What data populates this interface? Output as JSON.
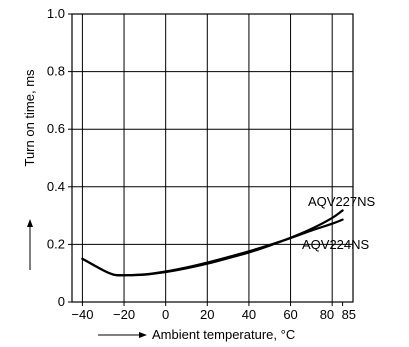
{
  "chart_data": {
    "type": "line",
    "title": "",
    "xlabel": "Ambient temperature, °C",
    "ylabel": "Turn on time, ms",
    "xlim": [
      -45,
      90
    ],
    "ylim": [
      0,
      1.0
    ],
    "x_ticks": [
      -40,
      -20,
      0,
      20,
      40,
      60,
      80,
      85
    ],
    "x_tick_labels": [
      "−40",
      "−20",
      "0",
      "20",
      "40",
      "60",
      "80",
      "85"
    ],
    "y_ticks": [
      0,
      0.2,
      0.4,
      0.6,
      0.8,
      1.0
    ],
    "y_tick_labels": [
      "0",
      "0.2",
      "0.4",
      "0.6",
      "0.8",
      "1.0"
    ],
    "grid": true,
    "legend": "none",
    "series": [
      {
        "name": "AQV227NS",
        "color": "#000000",
        "x": [
          -40,
          -30,
          -25,
          -20,
          -10,
          0,
          10,
          20,
          30,
          40,
          50,
          60,
          70,
          80,
          85
        ],
        "y": [
          0.15,
          0.11,
          0.095,
          0.093,
          0.095,
          0.104,
          0.117,
          0.133,
          0.152,
          0.172,
          0.196,
          0.223,
          0.254,
          0.292,
          0.318
        ]
      },
      {
        "name": "AQV224NS",
        "color": "#000000",
        "x": [
          -40,
          -30,
          -25,
          -20,
          -10,
          0,
          10,
          20,
          30,
          40,
          50,
          60,
          70,
          80,
          85
        ],
        "y": [
          0.15,
          0.11,
          0.095,
          0.093,
          0.096,
          0.106,
          0.12,
          0.137,
          0.156,
          0.176,
          0.198,
          0.222,
          0.248,
          0.272,
          0.286
        ]
      }
    ]
  }
}
